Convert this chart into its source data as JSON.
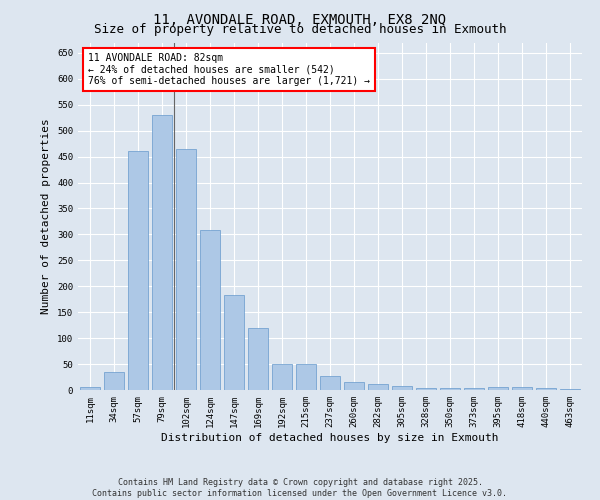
{
  "title": "11, AVONDALE ROAD, EXMOUTH, EX8 2NQ",
  "subtitle": "Size of property relative to detached houses in Exmouth",
  "xlabel": "Distribution of detached houses by size in Exmouth",
  "ylabel": "Number of detached properties",
  "categories": [
    "11sqm",
    "34sqm",
    "57sqm",
    "79sqm",
    "102sqm",
    "124sqm",
    "147sqm",
    "169sqm",
    "192sqm",
    "215sqm",
    "237sqm",
    "260sqm",
    "282sqm",
    "305sqm",
    "328sqm",
    "350sqm",
    "373sqm",
    "395sqm",
    "418sqm",
    "440sqm",
    "463sqm"
  ],
  "values": [
    5,
    35,
    460,
    530,
    465,
    308,
    183,
    120,
    50,
    50,
    27,
    15,
    12,
    8,
    3,
    3,
    3,
    5,
    5,
    3,
    2
  ],
  "bar_color": "#adc8e6",
  "bar_edge_color": "#6699cc",
  "bg_color": "#dde6f0",
  "grid_color": "#ffffff",
  "annotation_text": "11 AVONDALE ROAD: 82sqm\n← 24% of detached houses are smaller (542)\n76% of semi-detached houses are larger (1,721) →",
  "ylim": [
    0,
    670
  ],
  "yticks": [
    0,
    50,
    100,
    150,
    200,
    250,
    300,
    350,
    400,
    450,
    500,
    550,
    600,
    650
  ],
  "vline_pos": 3.5,
  "footnote": "Contains HM Land Registry data © Crown copyright and database right 2025.\nContains public sector information licensed under the Open Government Licence v3.0.",
  "title_fontsize": 10,
  "subtitle_fontsize": 9,
  "xlabel_fontsize": 8,
  "ylabel_fontsize": 8,
  "tick_fontsize": 6.5,
  "annotation_fontsize": 7,
  "footnote_fontsize": 6
}
